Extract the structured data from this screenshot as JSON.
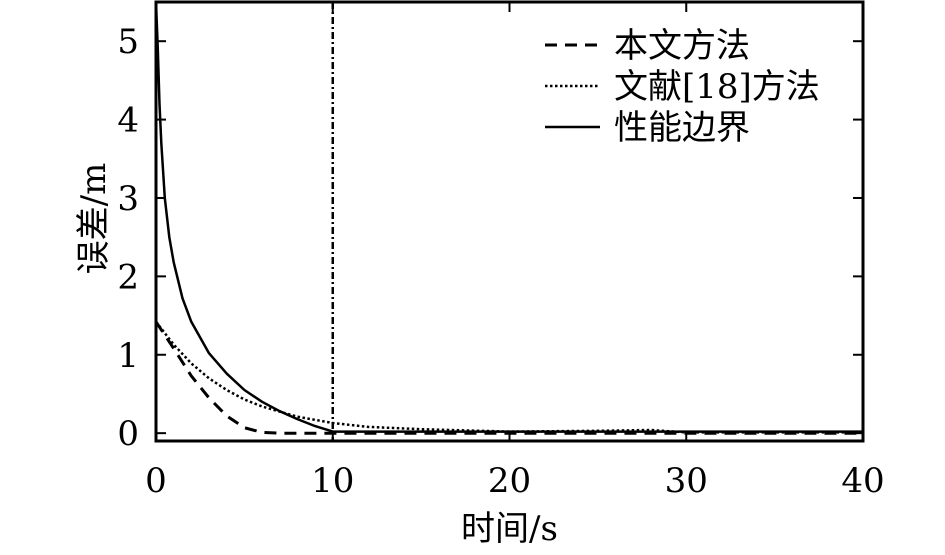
{
  "chart_data": {
    "type": "line",
    "title": "",
    "xlabel": "时间/s",
    "ylabel": "误差/m",
    "xlim": [
      0,
      40
    ],
    "ylim": [
      -0.1,
      5.5
    ],
    "x_ticks": [
      0,
      10,
      20,
      30,
      40
    ],
    "x_tick_labels": [
      "0",
      "10",
      "20",
      "30",
      "40"
    ],
    "y_ticks": [
      0,
      1,
      2,
      3,
      4,
      5
    ],
    "y_tick_labels": [
      "0",
      "1",
      "2",
      "3",
      "4",
      "5"
    ],
    "grid": false,
    "legend_position": "top-right",
    "vertical_reference_line": {
      "x": 10,
      "style": "dash-dot"
    },
    "series": [
      {
        "name": "本文方法",
        "style": "dashed",
        "x": [
          0,
          1,
          2,
          3,
          4,
          5,
          6,
          7,
          8,
          10,
          15,
          20,
          25,
          30,
          35,
          40
        ],
        "y": [
          1.42,
          1.08,
          0.73,
          0.45,
          0.22,
          0.07,
          0.01,
          0.0,
          0.0,
          0.0,
          0.0,
          0.0,
          0.0,
          0.0,
          0.0,
          0.0
        ]
      },
      {
        "name": "文献[18]方法",
        "style": "dotted",
        "x": [
          0,
          1,
          2,
          3,
          4,
          5,
          6,
          8,
          10,
          12,
          15,
          20,
          25,
          28,
          30,
          35,
          40
        ],
        "y": [
          1.42,
          1.13,
          0.89,
          0.7,
          0.55,
          0.43,
          0.34,
          0.21,
          0.13,
          0.08,
          0.05,
          0.02,
          0.03,
          0.04,
          0.01,
          0.01,
          0.01
        ]
      },
      {
        "name": "性能边界",
        "style": "solid",
        "x": [
          0,
          0.1,
          0.2,
          0.3,
          0.5,
          0.75,
          1,
          1.5,
          2,
          3,
          4,
          5,
          6,
          7,
          8,
          9,
          10,
          12,
          15,
          20,
          25,
          30,
          35,
          40
        ],
        "y": [
          5.5,
          4.9,
          4.2,
          3.7,
          3.0,
          2.5,
          2.18,
          1.72,
          1.42,
          1.02,
          0.76,
          0.55,
          0.4,
          0.28,
          0.18,
          0.09,
          0.02,
          0.02,
          0.02,
          0.02,
          0.02,
          0.02,
          0.02,
          0.02
        ]
      }
    ]
  }
}
